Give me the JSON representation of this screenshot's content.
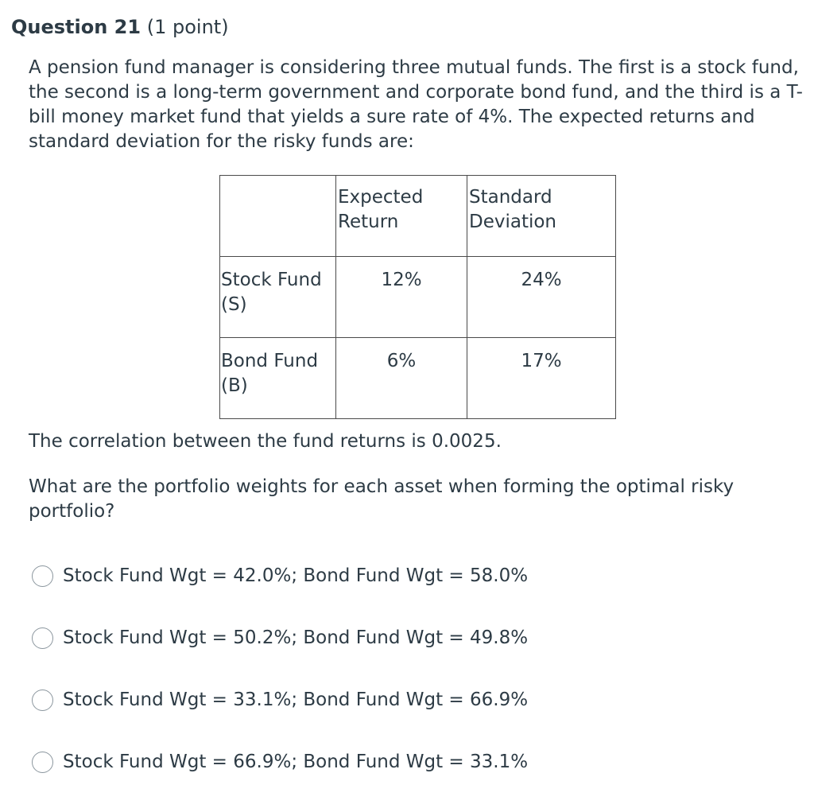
{
  "question": {
    "title": "Question 21",
    "points": "(1 point)",
    "text": "A pension fund manager is considering three mutual funds.  The first is a stock fund, the second is a long-term government and corporate bond fund, and the third is a T-bill money market fund that yields a sure rate of 4%.  The expected returns and standard deviation for the risky funds are:",
    "correlation": "The correlation between the fund returns is 0.0025.",
    "prompt": "What are the portfolio weights for each asset when forming the optimal risky portfolio?"
  },
  "table": {
    "headers": [
      "",
      "Expected Return",
      "Standard Deviation"
    ],
    "rows": [
      {
        "name": "Stock Fund (S)",
        "expected_return": "12%",
        "std_dev": "24%"
      },
      {
        "name": "Bond Fund (B)",
        "expected_return": "6%",
        "std_dev": "17%"
      }
    ]
  },
  "options": [
    {
      "label": "Stock Fund Wgt = 42.0%; Bond Fund Wgt = 58.0%"
    },
    {
      "label": "Stock Fund Wgt = 50.2%; Bond Fund Wgt = 49.8%"
    },
    {
      "label": "Stock Fund Wgt = 33.1%; Bond Fund Wgt = 66.9%"
    },
    {
      "label": "Stock Fund Wgt = 66.9%; Bond Fund Wgt = 33.1%"
    }
  ]
}
